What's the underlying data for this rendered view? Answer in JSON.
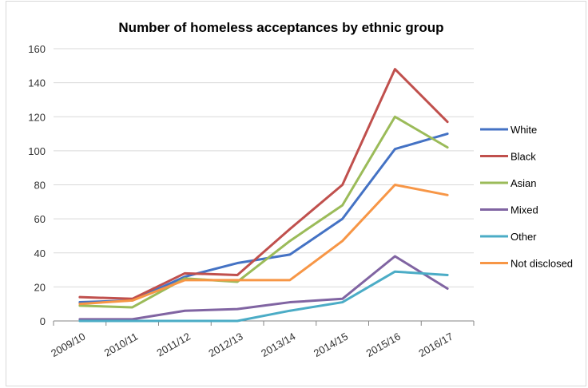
{
  "chart_data": {
    "type": "line",
    "title": "Number of homeless acceptances by ethnic group",
    "xlabel": "",
    "ylabel": "",
    "categories": [
      "2009/10",
      "2010/11",
      "2011/12",
      "2012/13",
      "2013/14",
      "2014/15",
      "2015/16",
      "2016/17"
    ],
    "ylim": [
      0,
      160
    ],
    "yticks": [
      0,
      20,
      40,
      60,
      80,
      100,
      120,
      140,
      160
    ],
    "grid": true,
    "legend_position": "right",
    "series": [
      {
        "name": "White",
        "color": "#4472c4",
        "values": [
          11,
          12,
          26,
          34,
          39,
          60,
          101,
          110
        ]
      },
      {
        "name": "Black",
        "color": "#c0504d",
        "values": [
          14,
          13,
          28,
          27,
          54,
          80,
          148,
          117
        ]
      },
      {
        "name": "Asian",
        "color": "#9bbb59",
        "values": [
          9,
          8,
          25,
          23,
          47,
          68,
          120,
          102
        ]
      },
      {
        "name": "Mixed",
        "color": "#8064a2",
        "values": [
          1,
          1,
          6,
          7,
          11,
          13,
          38,
          19
        ]
      },
      {
        "name": "Other",
        "color": "#4bacc6",
        "values": [
          0,
          0,
          0,
          0,
          6,
          11,
          29,
          27
        ]
      },
      {
        "name": "Not disclosed",
        "color": "#f79646",
        "values": [
          10,
          12,
          24,
          24,
          24,
          47,
          80,
          74
        ]
      }
    ]
  }
}
